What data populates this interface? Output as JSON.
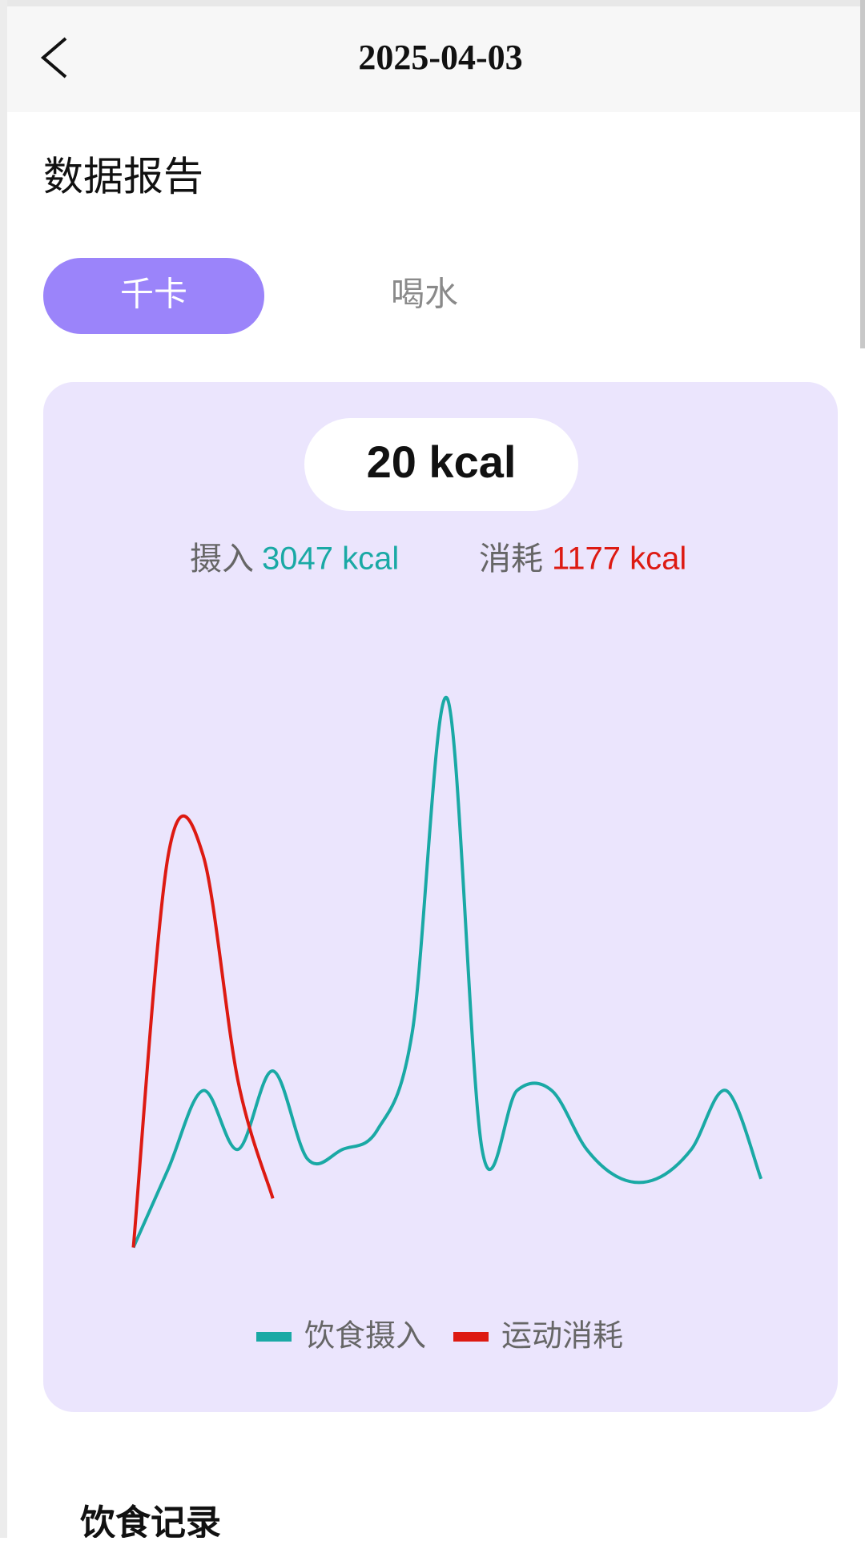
{
  "header": {
    "title": "2025-04-03"
  },
  "section_title": "数据报告",
  "tabs": [
    "千卡",
    "喝水"
  ],
  "summary": {
    "total": "20 kcal",
    "intake_label": "摄入",
    "intake": "3047 kcal",
    "burn_label": "消耗",
    "burn": "1177 kcal"
  },
  "chart_data": {
    "type": "line",
    "categories": [
      null,
      null,
      null,
      null,
      null,
      null,
      null,
      null,
      null,
      null,
      null,
      null,
      null,
      null,
      null,
      null,
      null,
      null,
      null
    ],
    "series": [
      {
        "name": "饮食摄入",
        "color": "#1aa9a5",
        "values": [
          0,
          80,
          160,
          100,
          180,
          90,
          100,
          120,
          220,
          560,
          100,
          160,
          160,
          100,
          70,
          70,
          100,
          160,
          70
        ]
      },
      {
        "name": "运动消耗",
        "color": "#dd1a12",
        "values": [
          0,
          400,
          400,
          170,
          50,
          null,
          null,
          null,
          null,
          null,
          null,
          null,
          null,
          null,
          null,
          null,
          null,
          null,
          null
        ]
      }
    ],
    "ylim": [
      -20,
      640
    ]
  },
  "footer_title": "饮食记录"
}
